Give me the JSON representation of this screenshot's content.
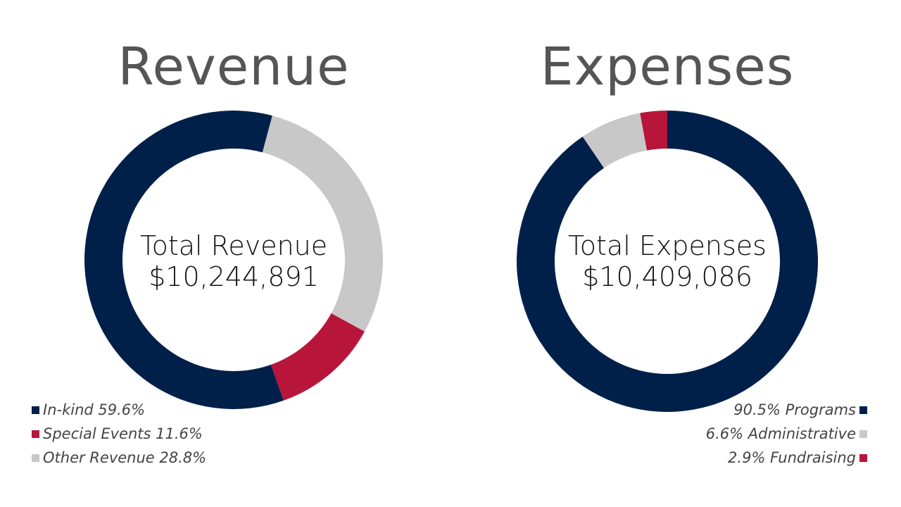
{
  "colors": {
    "navy": "#00204a",
    "red": "#b8153b",
    "gray": "#c8c8c8",
    "title": "#555555"
  },
  "chart_data": [
    {
      "type": "pie",
      "title": "Revenue",
      "center_label": "Total Revenue",
      "center_value": "$10,244,891",
      "slices": [
        {
          "name": "In-kind",
          "value": 59.6,
          "color": "#00204a",
          "label": "In-kind 59.6%"
        },
        {
          "name": "Special Events",
          "value": 11.6,
          "color": "#b8153b",
          "label": "Special Events 11.6%"
        },
        {
          "name": "Other Revenue",
          "value": 28.8,
          "color": "#c8c8c8",
          "label": "Other Revenue 28.8%"
        }
      ],
      "legend_position": "bottom-left"
    },
    {
      "type": "pie",
      "title": "Expenses",
      "center_label": "Total Expenses",
      "center_value": "$10,409,086",
      "slices": [
        {
          "name": "Programs",
          "value": 90.5,
          "color": "#00204a",
          "label": "90.5% Programs"
        },
        {
          "name": "Administrative",
          "value": 6.6,
          "color": "#c8c8c8",
          "label": "6.6% Administrative"
        },
        {
          "name": "Fundraising",
          "value": 2.9,
          "color": "#b8153b",
          "label": "2.9% Fundraising"
        }
      ],
      "legend_position": "bottom-right"
    }
  ]
}
